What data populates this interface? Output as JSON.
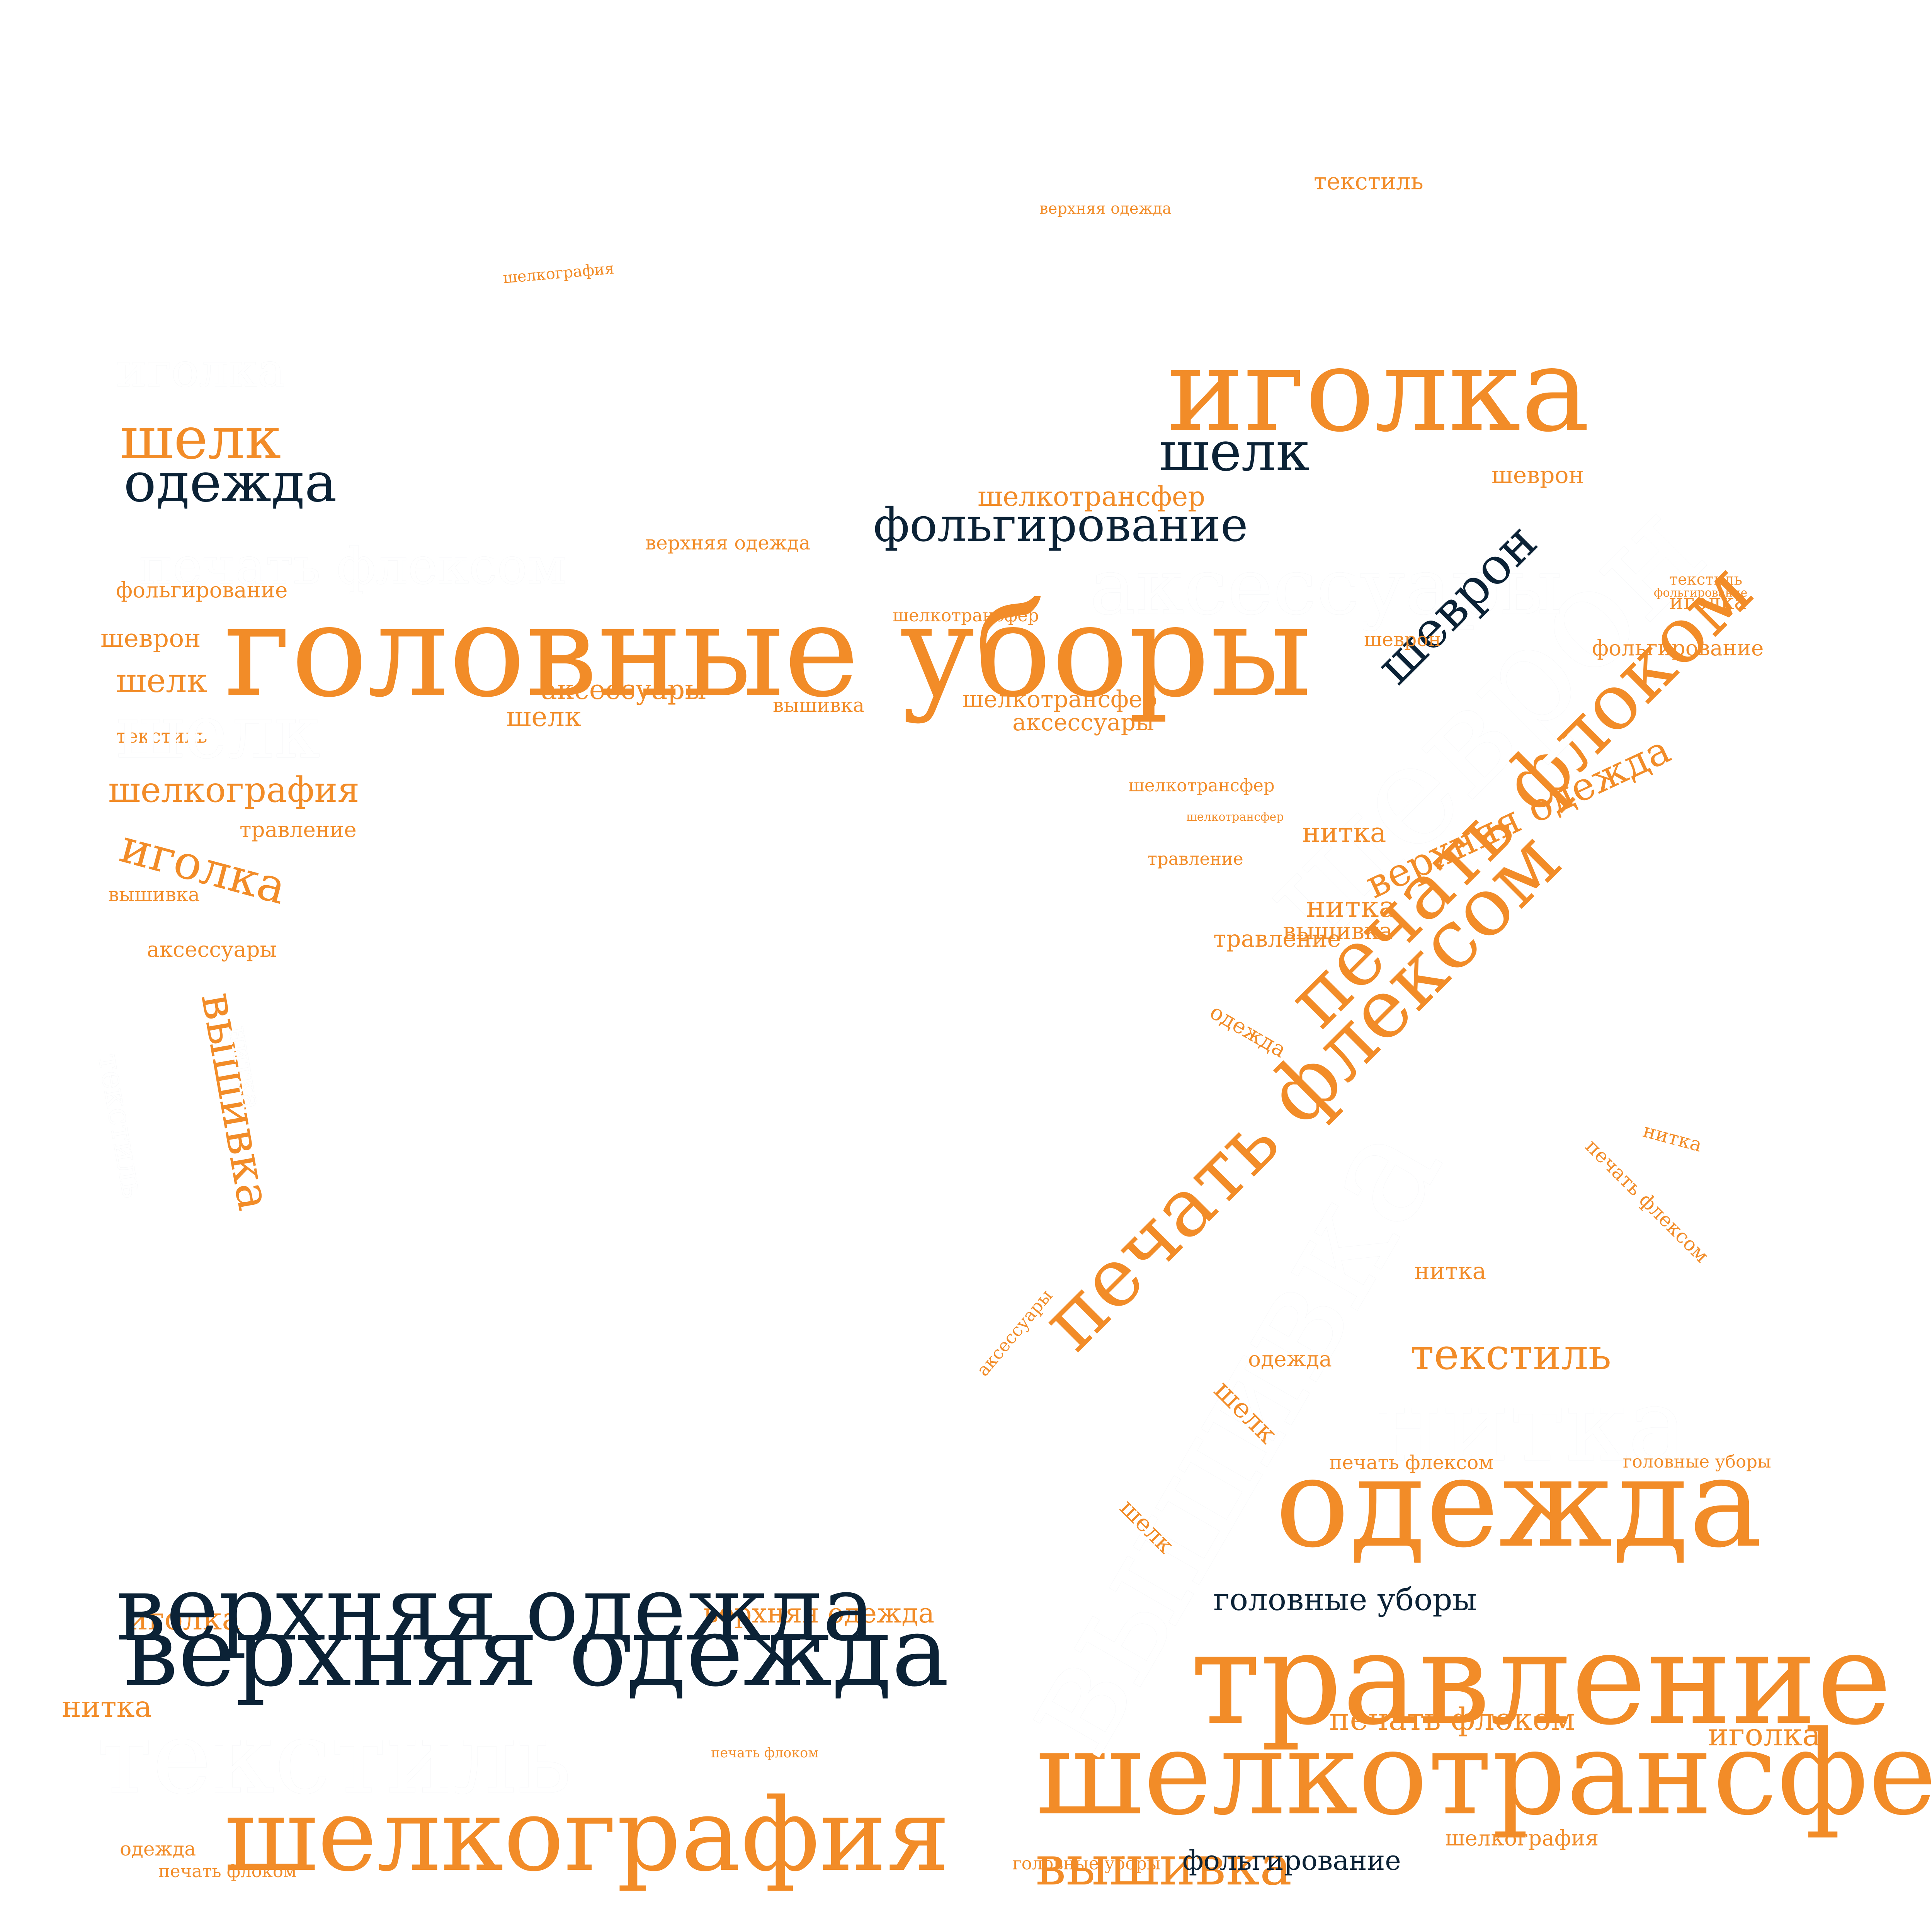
{
  "word_cloud": {
    "colors": {
      "orange": "#F28C28",
      "navy": "#0B2236",
      "white": "#FFFFFF",
      "background": "#FFFFFF"
    },
    "words": [
      {
        "text": "головные уборы",
        "color": "orange"
      },
      {
        "text": "иголка",
        "color": "orange"
      },
      {
        "text": "одежда",
        "color": "orange"
      },
      {
        "text": "травление",
        "color": "orange"
      },
      {
        "text": "шелкотрансфер",
        "color": "orange"
      },
      {
        "text": "шелкография",
        "color": "orange"
      },
      {
        "text": "печать флоком",
        "color": "orange"
      },
      {
        "text": "печать флексом",
        "color": "orange"
      },
      {
        "text": "шелк",
        "color": "orange"
      },
      {
        "text": "вышивка",
        "color": "orange"
      },
      {
        "text": "верхняя одежда",
        "color": "navy"
      },
      {
        "text": "текстиль",
        "color": "white"
      },
      {
        "text": "шеврон",
        "color": "white"
      },
      {
        "text": "нитка",
        "color": "white"
      },
      {
        "text": "аксессуары",
        "color": "white"
      },
      {
        "text": "фольгирование",
        "color": "navy"
      },
      {
        "text": "шелк",
        "color": "navy"
      },
      {
        "text": "одежда",
        "color": "navy"
      },
      {
        "text": "вышивка",
        "color": "white"
      },
      {
        "text": "шеврон",
        "color": "navy"
      },
      {
        "text": "текстиль",
        "color": "orange"
      },
      {
        "text": "вышивка",
        "color": "orange"
      },
      {
        "text": "верхняя одежда",
        "color": "orange"
      },
      {
        "text": "верхняя одежда",
        "color": "orange"
      },
      {
        "text": "нитка",
        "color": "orange"
      },
      {
        "text": "иголка",
        "color": "orange"
      },
      {
        "text": "иголка",
        "color": "orange"
      },
      {
        "text": "иголка",
        "color": "orange"
      },
      {
        "text": "текстиль",
        "color": "orange"
      },
      {
        "text": "шелкотрансфер",
        "color": "orange"
      },
      {
        "text": "шелкотрансфер",
        "color": "orange"
      },
      {
        "text": "аксессуары",
        "color": "orange"
      },
      {
        "text": "аксессуары",
        "color": "orange"
      },
      {
        "text": "аксессуары",
        "color": "orange"
      },
      {
        "text": "шелкография",
        "color": "orange"
      },
      {
        "text": "шелкография",
        "color": "orange"
      },
      {
        "text": "вышивка",
        "color": "orange"
      },
      {
        "text": "вышивка",
        "color": "orange"
      },
      {
        "text": "нитка",
        "color": "orange"
      },
      {
        "text": "нитка",
        "color": "orange"
      },
      {
        "text": "шеврон",
        "color": "orange"
      },
      {
        "text": "шеврон",
        "color": "orange"
      },
      {
        "text": "шелк",
        "color": "orange"
      },
      {
        "text": "шелк",
        "color": "orange"
      },
      {
        "text": "шелк",
        "color": "orange"
      },
      {
        "text": "фольгирование",
        "color": "orange"
      },
      {
        "text": "фольгирование",
        "color": "orange"
      },
      {
        "text": "травление",
        "color": "orange"
      },
      {
        "text": "травление",
        "color": "orange"
      },
      {
        "text": "текстиль",
        "color": "orange"
      },
      {
        "text": "печать флексом",
        "color": "orange"
      },
      {
        "text": "печать флексом",
        "color": "orange"
      },
      {
        "text": "печать флоком",
        "color": "orange"
      },
      {
        "text": "головные уборы",
        "color": "orange"
      },
      {
        "text": "одежда",
        "color": "orange"
      },
      {
        "text": "одежда",
        "color": "orange"
      },
      {
        "text": "верхняя одежда",
        "color": "orange"
      },
      {
        "text": "шелкотрансфер",
        "color": "orange"
      },
      {
        "text": "шелкография",
        "color": "orange"
      },
      {
        "text": "иголка",
        "color": "orange"
      },
      {
        "text": "вышивка",
        "color": "orange"
      },
      {
        "text": "печать флоком",
        "color": "orange"
      },
      {
        "text": "печать флоком",
        "color": "orange"
      },
      {
        "text": "головные уборы",
        "color": "orange"
      },
      {
        "text": "шелк",
        "color": "orange"
      },
      {
        "text": "аксессуары",
        "color": "orange"
      },
      {
        "text": "фольгирование",
        "color": "orange"
      },
      {
        "text": "текстиль",
        "color": "orange"
      },
      {
        "text": "шелкотрансфер",
        "color": "orange"
      },
      {
        "text": "верхняя одежда",
        "color": "orange"
      },
      {
        "text": "шелкотрансфер",
        "color": "orange"
      },
      {
        "text": "одежда",
        "color": "orange"
      },
      {
        "text": "травление",
        "color": "orange"
      },
      {
        "text": "нитка",
        "color": "orange"
      },
      {
        "text": "нитка",
        "color": "orange"
      },
      {
        "text": "шеврон",
        "color": "orange"
      },
      {
        "text": "верхняя одежда",
        "color": "navy"
      },
      {
        "text": "фольгирование",
        "color": "navy"
      },
      {
        "text": "головные уборы",
        "color": "navy"
      },
      {
        "text": "печать флексом",
        "color": "white"
      },
      {
        "text": "шелк",
        "color": "white"
      },
      {
        "text": "иголка",
        "color": "white"
      },
      {
        "text": "текстиль",
        "color": "white"
      },
      {
        "text": "нитка",
        "color": "white"
      }
    ]
  }
}
